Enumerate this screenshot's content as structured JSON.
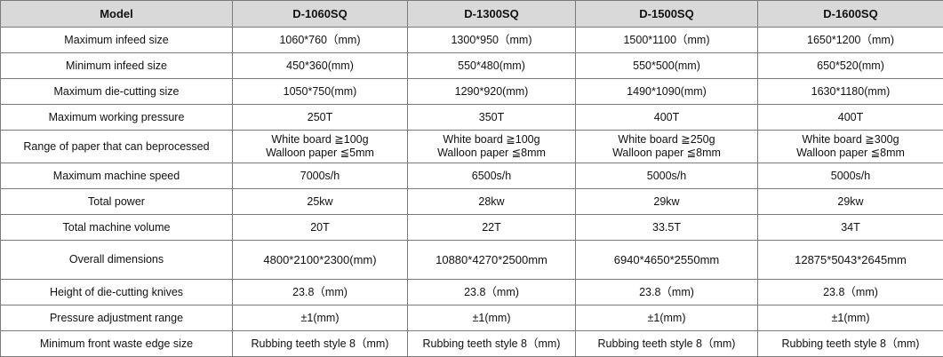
{
  "table": {
    "headers": [
      "Model",
      "D-1060SQ",
      "D-1300SQ",
      "D-1500SQ",
      "D-1600SQ"
    ],
    "rows": [
      [
        "Maximum infeed size",
        "1060*760（mm)",
        "1300*950（mm)",
        "1500*1100（mm)",
        "1650*1200（mm)"
      ],
      [
        "Minimum infeed size",
        "450*360(mm)",
        "550*480(mm)",
        "550*500(mm)",
        "650*520(mm)"
      ],
      [
        "Maximum die-cutting size",
        "1050*750(mm)",
        "1290*920(mm)",
        "1490*1090(mm)",
        "1630*1180(mm)"
      ],
      [
        "Maximum working pressure",
        "250T",
        "350T",
        "400T",
        "400T"
      ],
      [
        "Range of paper that can beprocessed",
        [
          "White board ≧100g",
          "Walloon paper ≦5mm"
        ],
        [
          "White board ≧100g",
          "Walloon paper ≦8mm"
        ],
        [
          "White board ≧250g",
          "Walloon paper ≦8mm"
        ],
        [
          "White board ≧300g",
          "Walloon paper ≦8mm"
        ]
      ],
      [
        "Maximum machine speed",
        "7000s/h",
        "6500s/h",
        "5000s/h",
        "5000s/h"
      ],
      [
        "Total power",
        "25kw",
        "28kw",
        "29kw",
        "29kw"
      ],
      [
        "Total machine volume",
        "20T",
        "22T",
        "33.5T",
        "34T"
      ],
      [
        "Overall dimensions",
        "4800*2100*2300(mm)",
        "10880*4270*2500mm",
        "6940*4650*2550mm",
        "12875*5043*2645mm"
      ],
      [
        "Height of die-cutting knives",
        "23.8（mm)",
        "23.8（mm)",
        "23.8（mm)",
        "23.8（mm)"
      ],
      [
        "Pressure adjustment range",
        "±1(mm)",
        "±1(mm)",
        "±1(mm)",
        "±1(mm)"
      ],
      [
        "Minimum front waste edge size",
        "Rubbing teeth style 8（mm)",
        "Rubbing teeth style 8（mm)",
        "Rubbing teeth style 8（mm)",
        "Rubbing teeth style 8（mm)"
      ]
    ]
  }
}
